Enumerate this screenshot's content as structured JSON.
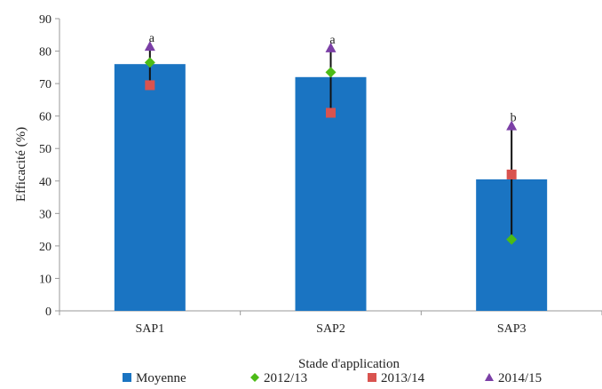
{
  "chart_data": {
    "type": "bar",
    "xlabel": "Stade d'application",
    "ylabel": "Efficacité (%)",
    "ylim": [
      0,
      90
    ],
    "yticks": [
      0,
      10,
      20,
      30,
      40,
      50,
      60,
      70,
      80,
      90
    ],
    "categories": [
      "SAP1",
      "SAP2",
      "SAP3"
    ],
    "grid": false,
    "legend_position": "bottom",
    "bar_series": {
      "name": "Moyenne",
      "values": [
        76,
        72,
        40.5
      ],
      "color": "#1a74c2"
    },
    "point_series": [
      {
        "name": "2012/13",
        "marker": "diamond",
        "color": "#4cbb17",
        "values": [
          76.5,
          73.5,
          22
        ]
      },
      {
        "name": "2013/14",
        "marker": "square",
        "color": "#d9534f",
        "values": [
          69.5,
          61,
          42
        ]
      },
      {
        "name": "2014/15",
        "marker": "triangle",
        "color": "#7b3fa6",
        "values": [
          81.5,
          81,
          57
        ]
      }
    ],
    "error_bars": [
      {
        "low": 69.5,
        "high": 81.5
      },
      {
        "low": 61,
        "high": 81
      },
      {
        "low": 22,
        "high": 57
      }
    ],
    "annotations": [
      "a",
      "a",
      "b"
    ]
  }
}
